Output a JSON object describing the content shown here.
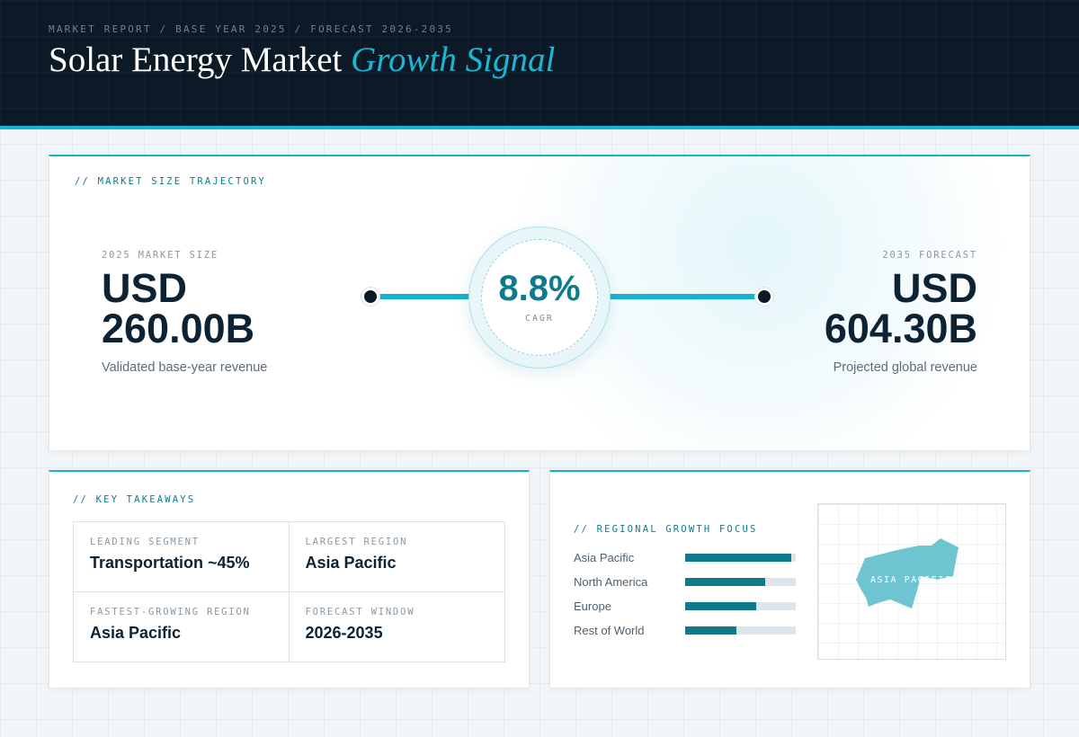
{
  "header": {
    "eyebrow": "MARKET REPORT / BASE YEAR 2025 / FORECAST 2026-2035",
    "title_main": "Solar Energy Market",
    "title_accent": "Growth Signal"
  },
  "trajectory": {
    "section_label": "// MARKET SIZE TRAJECTORY",
    "start": {
      "label": "2025 MARKET SIZE",
      "value": "USD\n260.00B",
      "caption": "Validated base-year revenue"
    },
    "end": {
      "label": "2035 FORECAST",
      "value": "USD\n604.30B",
      "caption": "Projected global revenue"
    },
    "cagr": {
      "value": "8.8%",
      "label": "CAGR"
    }
  },
  "takeaways": {
    "section_label": "// KEY TAKEAWAYS",
    "items": [
      {
        "label": "LEADING SEGMENT",
        "value": "Transportation ~45%"
      },
      {
        "label": "LARGEST REGION",
        "value": "Asia Pacific"
      },
      {
        "label": "FASTEST-GROWING REGION",
        "value": "Asia Pacific"
      },
      {
        "label": "FORECAST WINDOW",
        "value": "2026-2035"
      }
    ]
  },
  "regional": {
    "section_label": "// REGIONAL GROWTH FOCUS",
    "regions": [
      {
        "name": "Asia Pacific",
        "level": 0.96
      },
      {
        "name": "North America",
        "level": 0.72
      },
      {
        "name": "Europe",
        "level": 0.64
      },
      {
        "name": "Rest of World",
        "level": 0.46
      }
    ],
    "map_label": "ASIA PACIFIC"
  },
  "colors": {
    "accent": "#14b4cc",
    "accent_dark": "#0e7b8c",
    "navy": "#0b1a26",
    "map_region": "#6fc4d2"
  }
}
